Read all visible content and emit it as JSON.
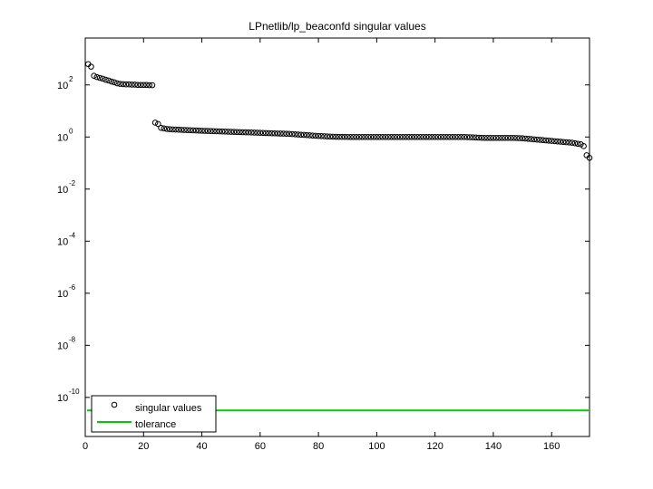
{
  "chart_data": {
    "type": "scatter",
    "title": "LPnetlib/lp_beaconfd singular values",
    "xlabel": "",
    "ylabel": "",
    "xlim": [
      0,
      173
    ],
    "ylim_log10": [
      -11.5,
      3.8
    ],
    "y_scale": "log",
    "x_ticks": [
      0,
      20,
      40,
      60,
      80,
      100,
      120,
      140,
      160
    ],
    "y_ticks": [
      {
        "base": "10",
        "exp": "2",
        "log10": 2
      },
      {
        "base": "10",
        "exp": "0",
        "log10": 0
      },
      {
        "base": "10",
        "exp": "-2",
        "log10": -2
      },
      {
        "base": "10",
        "exp": "-4",
        "log10": -4
      },
      {
        "base": "10",
        "exp": "-6",
        "log10": -6
      },
      {
        "base": "10",
        "exp": "-8",
        "log10": -8
      },
      {
        "base": "10",
        "exp": "-10",
        "log10": -10
      }
    ],
    "grid": false,
    "legend_position": "bottom-left",
    "series": [
      {
        "name": "singular values",
        "marker": "circle",
        "color": "#000000",
        "x": [
          1,
          2,
          3,
          4,
          5,
          6,
          7,
          8,
          9,
          10,
          11,
          12,
          13,
          14,
          15,
          16,
          17,
          18,
          19,
          20,
          21,
          22,
          23,
          24,
          25,
          26,
          27,
          28,
          29,
          30,
          31,
          32,
          33,
          34,
          35,
          36,
          37,
          38,
          39,
          40,
          41,
          42,
          43,
          44,
          45,
          46,
          47,
          48,
          49,
          50,
          51,
          52,
          53,
          54,
          55,
          56,
          57,
          58,
          59,
          60,
          61,
          62,
          63,
          64,
          65,
          66,
          67,
          68,
          69,
          70,
          71,
          72,
          73,
          74,
          75,
          76,
          77,
          78,
          79,
          80,
          81,
          82,
          83,
          84,
          85,
          86,
          87,
          88,
          89,
          90,
          91,
          92,
          93,
          94,
          95,
          96,
          97,
          98,
          99,
          100,
          101,
          102,
          103,
          104,
          105,
          106,
          107,
          108,
          109,
          110,
          111,
          112,
          113,
          114,
          115,
          116,
          117,
          118,
          119,
          120,
          121,
          122,
          123,
          124,
          125,
          126,
          127,
          128,
          129,
          130,
          131,
          132,
          133,
          134,
          135,
          136,
          137,
          138,
          139,
          140,
          141,
          142,
          143,
          144,
          145,
          146,
          147,
          148,
          149,
          150,
          151,
          152,
          153,
          154,
          155,
          156,
          157,
          158,
          159,
          160,
          161,
          162,
          163,
          164,
          165,
          166,
          167,
          168,
          169,
          170,
          171,
          172,
          173
        ],
        "log10_y": [
          2.8,
          2.7,
          2.35,
          2.3,
          2.27,
          2.24,
          2.2,
          2.17,
          2.13,
          2.1,
          2.06,
          2.04,
          2.03,
          2.02,
          2.02,
          2.01,
          2.01,
          2.0,
          2.0,
          2.0,
          2.0,
          1.99,
          1.99,
          0.55,
          0.5,
          0.35,
          0.33,
          0.31,
          0.3,
          0.29,
          0.285,
          0.28,
          0.275,
          0.27,
          0.265,
          0.26,
          0.255,
          0.25,
          0.245,
          0.24,
          0.236,
          0.232,
          0.228,
          0.224,
          0.22,
          0.216,
          0.212,
          0.208,
          0.204,
          0.2,
          0.196,
          0.192,
          0.188,
          0.184,
          0.18,
          0.176,
          0.172,
          0.168,
          0.164,
          0.16,
          0.156,
          0.152,
          0.148,
          0.144,
          0.14,
          0.136,
          0.132,
          0.128,
          0.124,
          0.12,
          0.112,
          0.104,
          0.096,
          0.088,
          0.08,
          0.072,
          0.064,
          0.056,
          0.048,
          0.04,
          0.034,
          0.028,
          0.022,
          0.016,
          0.012,
          0.008,
          0.005,
          0.003,
          0.002,
          0.001,
          0.0,
          0.0,
          0.0,
          0.0,
          0.0,
          0.0,
          0.0,
          0.0,
          0.0,
          0.0,
          0.0,
          0.0,
          0.0,
          0.0,
          0.0,
          0.0,
          0.0,
          0.0,
          0.0,
          0.0,
          0.0,
          0.0,
          0.0,
          0.0,
          0.0,
          0.0,
          0.0,
          0.0,
          0.0,
          0.0,
          0.0,
          0.0,
          0.0,
          0.0,
          0.0,
          0.0,
          0.0,
          0.0,
          0.0,
          0.0,
          -0.005,
          -0.01,
          -0.015,
          -0.02,
          -0.025,
          -0.03,
          -0.035,
          -0.035,
          -0.035,
          -0.035,
          -0.035,
          -0.035,
          -0.035,
          -0.035,
          -0.035,
          -0.035,
          -0.035,
          -0.04,
          -0.045,
          -0.05,
          -0.06,
          -0.07,
          -0.08,
          -0.09,
          -0.1,
          -0.11,
          -0.12,
          -0.13,
          -0.14,
          -0.15,
          -0.16,
          -0.17,
          -0.18,
          -0.19,
          -0.2,
          -0.21,
          -0.22,
          -0.24,
          -0.26,
          -0.28,
          -0.35,
          -0.7,
          -0.8
        ]
      },
      {
        "name": "tolerance",
        "marker": "line",
        "color": "#00cc00",
        "log10_y": -10.5
      }
    ]
  }
}
